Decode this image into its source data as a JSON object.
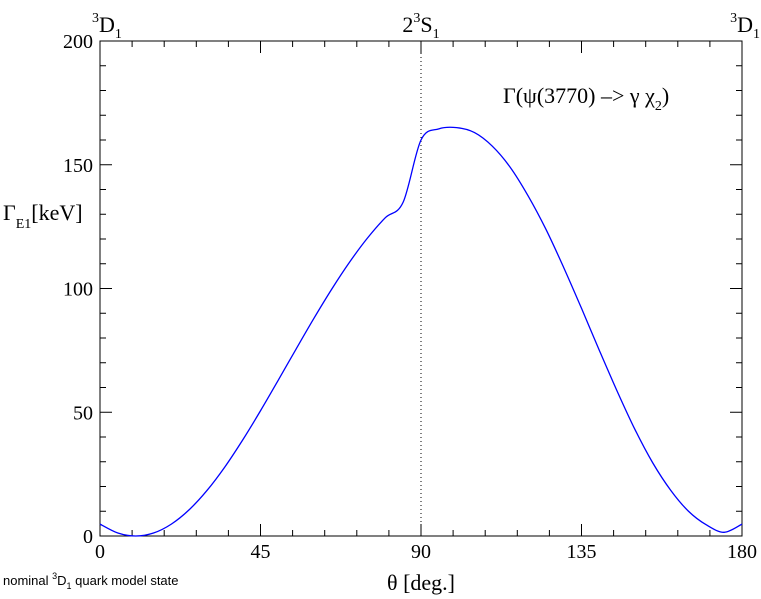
{
  "chart_data": {
    "type": "line",
    "xlim": [
      0,
      180
    ],
    "ylim": [
      0,
      200
    ],
    "x_ticks": [
      0,
      45,
      90,
      135,
      180
    ],
    "x_tick_labels": [
      "0",
      "45",
      "90",
      "135",
      "180"
    ],
    "y_ticks": [
      0,
      50,
      100,
      150,
      200
    ],
    "y_tick_labels": [
      "0",
      "50",
      "100",
      "150",
      "200"
    ],
    "xlabel": {
      "symbol": "θ",
      "text": " [deg.]"
    },
    "ylabel": {
      "symbol": "Γ",
      "sub": "E1",
      "text": "[keV]"
    },
    "annotation": {
      "pre": "Γ(ψ(3770) –> γ χ",
      "sub": "2",
      "post": ")"
    },
    "top_labels": [
      {
        "x": 0,
        "pre": "",
        "sup": "3",
        "main": "D",
        "sub": "1"
      },
      {
        "x": 90,
        "pre": "2",
        "sup": "3",
        "main": "S",
        "sub": "1"
      },
      {
        "x": 180,
        "pre": "",
        "sup": "3",
        "main": "D",
        "sub": "1"
      }
    ],
    "reference_line": {
      "x": 90,
      "style": "dotted"
    },
    "footnote": {
      "pre": "nominal ",
      "sup": "3",
      "main": "D",
      "sub": "1",
      "post": " quark model state"
    },
    "grid": false,
    "legend": "none",
    "series": [
      {
        "color": "#0000ff",
        "x": [
          0,
          5,
          10,
          15,
          20,
          25,
          30,
          35,
          40,
          45,
          50,
          55,
          60,
          65,
          70,
          75,
          80,
          85,
          90,
          95,
          100,
          105,
          110,
          115,
          120,
          125,
          130,
          135,
          140,
          145,
          150,
          155,
          160,
          165,
          170,
          175,
          180
        ],
        "y": [
          4.8,
          1.2,
          0.0,
          1.2,
          4.8,
          10.6,
          18.4,
          27.9,
          38.8,
          50.6,
          63.0,
          75.6,
          88.0,
          99.8,
          110.7,
          120.4,
          128.6,
          134.9,
          160.0,
          164.5,
          165.0,
          163.0,
          157.5,
          149.0,
          137.5,
          124.0,
          108.5,
          92.0,
          75.0,
          58.5,
          43.0,
          29.5,
          18.5,
          10.0,
          4.5,
          1.5,
          4.8
        ]
      }
    ]
  }
}
